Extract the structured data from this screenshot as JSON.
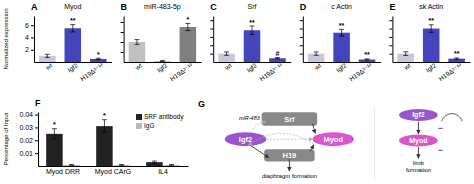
{
  "chart_data": [
    {
      "type": "bar",
      "panel_label": "A",
      "title": "Myod",
      "categories": [
        "wt",
        "Igf2",
        "H19Δ³⁻¹³"
      ],
      "values": [
        1.0,
        5.5,
        0.5
      ],
      "errors": [
        0.25,
        0.6,
        0.12
      ],
      "colors": [
        "#c8c8dc",
        "#4444bb",
        "#4444bb"
      ],
      "sig_labels": [
        null,
        "**",
        "*"
      ],
      "ylabel": "Normalized expression",
      "ylim": [
        0,
        7.5
      ],
      "yticks": [
        2,
        4,
        6
      ]
    },
    {
      "type": "bar",
      "panel_label": "B",
      "title": "miR-483-5p",
      "categories": [
        "wt",
        "Igf2",
        "H19Δ³⁻¹³"
      ],
      "values": [
        1.0,
        0.05,
        1.75
      ],
      "errors": [
        0.12,
        0.02,
        0.18
      ],
      "colors": [
        "#c0c0c0",
        "#c0c0c0",
        "#808080"
      ],
      "sig_labels": [
        null,
        null,
        "*"
      ],
      "ylim": [
        0,
        2.3
      ],
      "yticks": [
        0.5,
        1.0,
        1.5,
        2.0
      ],
      "tick_labels": "x"
    },
    {
      "type": "bar",
      "panel_label": "C",
      "title": "Srf",
      "categories": [
        "wt",
        "Igf2",
        "H19Δ³⁻¹³"
      ],
      "values": [
        1.0,
        3.8,
        0.45
      ],
      "errors": [
        0.2,
        0.5,
        0.08
      ],
      "colors": [
        "#c8c8dc",
        "#4444bb",
        "#4444bb"
      ],
      "sig_labels": [
        null,
        "**",
        "#"
      ],
      "ylim": [
        0,
        5.5
      ],
      "yticks": [
        1,
        2,
        3,
        4,
        5
      ],
      "tick_labels": "x"
    },
    {
      "type": "bar",
      "panel_label": "D",
      "title": "c Actin",
      "categories": [
        "wt",
        "Igf2",
        "H19Δ³⁻¹³"
      ],
      "values": [
        1.0,
        3.5,
        0.3
      ],
      "errors": [
        0.2,
        0.4,
        0.07
      ],
      "colors": [
        "#c8c8dc",
        "#4444bb",
        "#4444bb"
      ],
      "sig_labels": [
        null,
        "**",
        "**"
      ],
      "ylim": [
        0,
        5.5
      ],
      "yticks": [
        1,
        2,
        3,
        4,
        5
      ],
      "tick_labels": "x"
    },
    {
      "type": "bar",
      "panel_label": "E",
      "title": "sk Actin",
      "categories": [
        "wt",
        "Igf2",
        "H19Δ³⁻¹³"
      ],
      "values": [
        1.0,
        4.0,
        0.4
      ],
      "errors": [
        0.22,
        0.45,
        0.09
      ],
      "colors": [
        "#c8c8dc",
        "#4444bb",
        "#4444bb"
      ],
      "sig_labels": [
        null,
        "**",
        "**"
      ],
      "ylim": [
        0,
        5.5
      ],
      "yticks": [
        1,
        2,
        3,
        4,
        5
      ],
      "tick_labels": "x"
    },
    {
      "type": "bar",
      "panel_label": "F",
      "categories": [
        "Myod DRR",
        "Myod CArG",
        "IL4"
      ],
      "series": [
        {
          "name": "SRF antibody",
          "color": "#222222",
          "values": [
            0.025,
            0.031,
            0.003
          ],
          "errors": [
            0.004,
            0.005,
            0.0008
          ],
          "sig_labels": [
            "*",
            "*",
            null
          ]
        },
        {
          "name": "IgG",
          "color": "#bbbbbb",
          "values": [
            0.0008,
            0.0008,
            0.0008
          ],
          "errors": [
            0.0003,
            0.0003,
            0.0003
          ]
        }
      ],
      "ylabel": "Percentage of Input",
      "ylim": [
        0,
        0.042
      ],
      "yticks": [
        0.01,
        0.02,
        0.03,
        0.04
      ],
      "legend": "upper right"
    },
    {
      "type": "diagram",
      "panel_label": "G",
      "nodes": [
        {
          "text": "Srf",
          "color": "#888888"
        },
        {
          "text": "Igf2",
          "color": "#9955cc"
        },
        {
          "text": "Myod",
          "color": "#dd55cc"
        },
        {
          "text": "H19",
          "color": "#888888"
        },
        {
          "text": "Igf2",
          "color": "#9955cc"
        },
        {
          "text": "Myod",
          "color": "#dd55cc"
        }
      ],
      "edges": [
        {
          "line_style": "solid",
          "color": "#333333"
        },
        {
          "line_style": "dashed",
          "color": "#aaaaaa"
        },
        {
          "line_style": "dashed",
          "color": "#aaaaaa"
        },
        {
          "line_style": "solid",
          "color": "#333333"
        },
        {
          "line_style": "solid",
          "color": "#333333"
        },
        {
          "line_style": "dashed",
          "color": "#aaaaaa"
        },
        {
          "line_style": "solid",
          "color": "#333333"
        },
        {
          "line_style": "solid",
          "color": "#333333"
        },
        {
          "line_style": "solid",
          "color": "#333333"
        }
      ],
      "annotations": [
        "miR-483",
        "diaphragm formation",
        "limb\nformation",
        "−",
        "−"
      ]
    }
  ]
}
